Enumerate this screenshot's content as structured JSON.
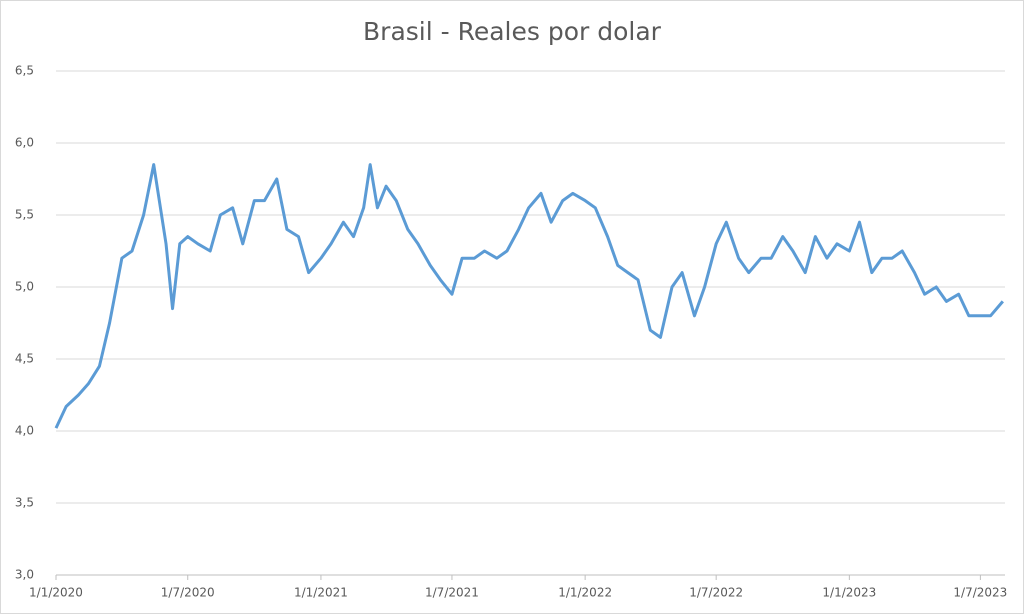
{
  "chart_data": {
    "type": "line",
    "title": "Brasil - Reales por dolar",
    "color": "#5b9bd5",
    "grid": true,
    "x": [
      "2020-01-01",
      "2020-01-15",
      "2020-02-01",
      "2020-02-15",
      "2020-03-01",
      "2020-03-15",
      "2020-04-01",
      "2020-04-15",
      "2020-05-01",
      "2020-05-15",
      "2020-06-01",
      "2020-06-10",
      "2020-06-20",
      "2020-07-01",
      "2020-07-15",
      "2020-08-01",
      "2020-08-15",
      "2020-09-01",
      "2020-09-15",
      "2020-10-01",
      "2020-10-15",
      "2020-11-01",
      "2020-11-15",
      "2020-12-01",
      "2020-12-15",
      "2021-01-01",
      "2021-01-15",
      "2021-02-01",
      "2021-02-15",
      "2021-03-01",
      "2021-03-10",
      "2021-03-20",
      "2021-04-01",
      "2021-04-15",
      "2021-05-01",
      "2021-05-15",
      "2021-06-01",
      "2021-06-15",
      "2021-07-01",
      "2021-07-15",
      "2021-08-01",
      "2021-08-15",
      "2021-09-01",
      "2021-09-15",
      "2021-10-01",
      "2021-10-15",
      "2021-11-01",
      "2021-11-15",
      "2021-12-01",
      "2021-12-15",
      "2022-01-01",
      "2022-01-15",
      "2022-02-01",
      "2022-02-15",
      "2022-03-01",
      "2022-03-15",
      "2022-04-01",
      "2022-04-15",
      "2022-05-01",
      "2022-05-15",
      "2022-06-01",
      "2022-06-15",
      "2022-07-01",
      "2022-07-15",
      "2022-08-01",
      "2022-08-15",
      "2022-09-01",
      "2022-09-15",
      "2022-10-01",
      "2022-10-15",
      "2022-11-01",
      "2022-11-15",
      "2022-12-01",
      "2022-12-15",
      "2023-01-01",
      "2023-01-15",
      "2023-02-01",
      "2023-02-15",
      "2023-03-01",
      "2023-03-15",
      "2023-04-01",
      "2023-04-15",
      "2023-05-01",
      "2023-05-15",
      "2023-06-01",
      "2023-06-15",
      "2023-07-01",
      "2023-07-15",
      "2023-08-01"
    ],
    "values": [
      4.02,
      4.17,
      4.25,
      4.33,
      4.45,
      4.75,
      5.2,
      5.25,
      5.5,
      5.85,
      5.3,
      4.85,
      5.3,
      5.35,
      5.3,
      5.25,
      5.5,
      5.55,
      5.3,
      5.6,
      5.6,
      5.75,
      5.4,
      5.35,
      5.1,
      5.2,
      5.3,
      5.45,
      5.35,
      5.55,
      5.85,
      5.55,
      5.7,
      5.6,
      5.4,
      5.3,
      5.15,
      5.05,
      4.95,
      5.2,
      5.2,
      5.25,
      5.2,
      5.25,
      5.4,
      5.55,
      5.65,
      5.45,
      5.6,
      5.65,
      5.6,
      5.55,
      5.35,
      5.15,
      5.1,
      5.05,
      4.7,
      4.65,
      5.0,
      5.1,
      4.8,
      5.0,
      5.3,
      5.45,
      5.2,
      5.1,
      5.2,
      5.2,
      5.35,
      5.25,
      5.1,
      5.35,
      5.2,
      5.3,
      5.25,
      5.45,
      5.1,
      5.2,
      5.2,
      5.25,
      5.1,
      4.95,
      5.0,
      4.9,
      4.95,
      4.8,
      4.8,
      4.8,
      4.9
    ],
    "xlim": [
      "2020-01-01",
      "2023-08-04"
    ],
    "xticks": [
      {
        "value": "2020-01-01",
        "label": "1/1/2020"
      },
      {
        "value": "2020-07-01",
        "label": "1/7/2020"
      },
      {
        "value": "2021-01-01",
        "label": "1/1/2021"
      },
      {
        "value": "2021-07-01",
        "label": "1/7/2021"
      },
      {
        "value": "2022-01-01",
        "label": "1/1/2022"
      },
      {
        "value": "2022-07-01",
        "label": "1/7/2022"
      },
      {
        "value": "2023-01-01",
        "label": "1/1/2023"
      },
      {
        "value": "2023-07-01",
        "label": "1/7/2023"
      }
    ],
    "ylim": [
      3.0,
      6.5
    ],
    "yticks": [
      {
        "value": 3.0,
        "label": "3,0"
      },
      {
        "value": 3.5,
        "label": "3,5"
      },
      {
        "value": 4.0,
        "label": "4,0"
      },
      {
        "value": 4.5,
        "label": "4,5"
      },
      {
        "value": 5.0,
        "label": "5,0"
      },
      {
        "value": 5.5,
        "label": "5,5"
      },
      {
        "value": 6.0,
        "label": "6,0"
      },
      {
        "value": 6.5,
        "label": "6,5"
      }
    ]
  }
}
